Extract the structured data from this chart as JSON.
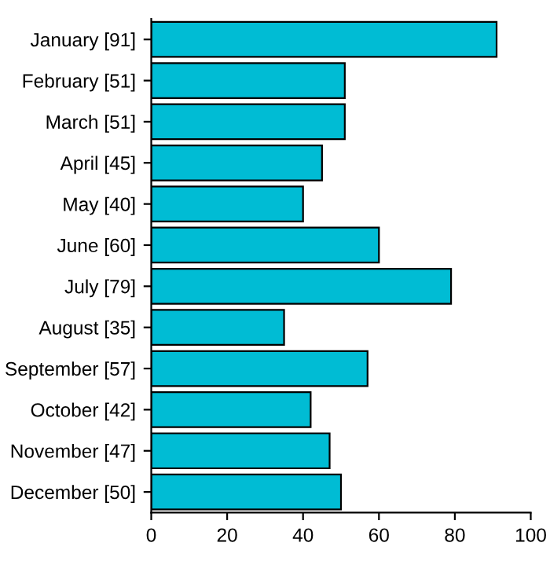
{
  "chart_data": {
    "type": "bar",
    "orientation": "horizontal",
    "categories": [
      "January [91]",
      "February [51]",
      "March [51]",
      "April [45]",
      "May [40]",
      "June [60]",
      "July [79]",
      "August [35]",
      "September [57]",
      "October [42]",
      "November [47]",
      "December [50]"
    ],
    "values": [
      91,
      51,
      51,
      45,
      40,
      60,
      79,
      35,
      57,
      42,
      47,
      50
    ],
    "color": "#00bcd4",
    "xlim": [
      0,
      100
    ],
    "xticks": [
      0,
      20,
      40,
      60,
      80,
      100
    ],
    "grid": false,
    "legend": false
  }
}
